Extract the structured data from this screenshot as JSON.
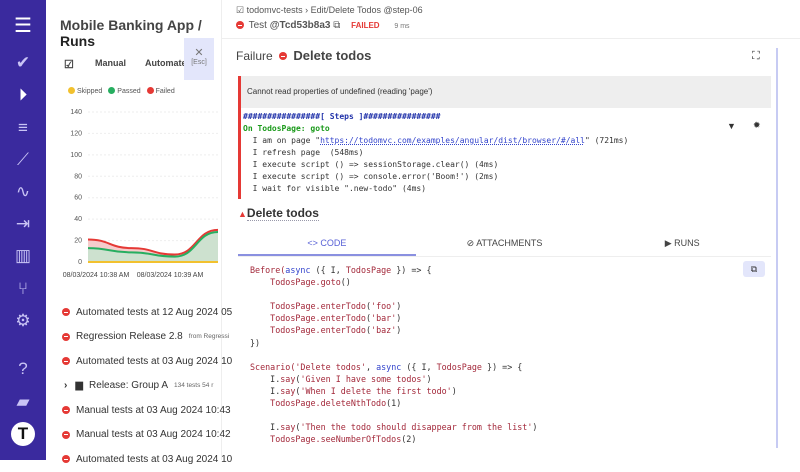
{
  "app": {
    "project": "Mobile Banking App",
    "section": "Runs"
  },
  "tabs": {
    "manual": "Manual",
    "automated": "Automated",
    "close_hint": "[Esc]"
  },
  "chart_data": {
    "type": "area",
    "legend": [
      "Skipped",
      "Passed",
      "Failed"
    ],
    "colors": {
      "Skipped": "#f2c12e",
      "Passed": "#27ae60",
      "Failed": "#e53935"
    },
    "ylim": [
      0,
      140
    ],
    "yticks": [
      0,
      20,
      40,
      60,
      80,
      100,
      120,
      140
    ],
    "xticks": [
      "08/03/2024 10:38 AM",
      "08/03/2024 10:39 AM"
    ],
    "x": [
      0,
      1,
      2,
      3
    ],
    "series": [
      {
        "name": "Skipped",
        "values": [
          0,
          0,
          0,
          0
        ]
      },
      {
        "name": "Passed",
        "values": [
          13,
          9,
          5,
          28
        ]
      },
      {
        "name": "Failed",
        "values": [
          21,
          13,
          7,
          30
        ]
      }
    ],
    "grid": true,
    "legend_position": "top-left"
  },
  "runs": [
    {
      "label": "Automated tests at 12 Aug 2024 05",
      "type": "failed"
    },
    {
      "label": "Regression Release 2.8",
      "extra": "from Regressi",
      "type": "failed"
    },
    {
      "label": "Automated tests at 03 Aug 2024 10",
      "type": "failed"
    },
    {
      "label": "Release: Group A",
      "extra": "134 tests  54 r",
      "type": "folder"
    },
    {
      "label": "Manual tests at 03 Aug 2024 10:43",
      "type": "failed"
    },
    {
      "label": "Manual tests at 03 Aug 2024 10:42",
      "type": "failed"
    },
    {
      "label": "Automated tests at 03 Aug 2024 10",
      "type": "failed"
    }
  ],
  "test": {
    "suite": "todomvc-tests",
    "path": "Edit/Delete Todos @step-06",
    "id_prefix": "Test",
    "id": "@Tcd53b8a3",
    "status": "FAILED",
    "duration": "9 ms"
  },
  "failure": {
    "label": "Failure",
    "title": "Delete todos",
    "message": "Cannot read properties of undefined (reading 'page')",
    "steps_header": "################[ Steps ]################",
    "step_group": "On TodosPage: goto",
    "steps": [
      [
        "  I am on page \"",
        "https://todomvc.com/examples/angular/dist/browser/#/all",
        "\" (721ms)"
      ],
      [
        "  I refresh page  (548ms)"
      ],
      [
        "  I execute script () => sessionStorage.clear() (4ms)"
      ],
      [
        "  I execute script () => console.error('Boom!') (2ms)"
      ],
      [
        "  I wait for visible \".new-todo\" (4ms)"
      ]
    ]
  },
  "detail": {
    "title": "Delete todos",
    "tabs": [
      "<> CODE",
      "ATTACHMENTS",
      "RUNS"
    ],
    "code": [
      [
        [
          "Before(",
          "r"
        ],
        [
          "async",
          "b"
        ],
        [
          " ({ I, ",
          "k"
        ],
        [
          "TodosPage",
          "r"
        ],
        [
          " }) => {",
          "k"
        ]
      ],
      [
        [
          "    TodosPage.goto",
          "r"
        ],
        [
          "()",
          "k"
        ]
      ],
      [],
      [
        [
          "    TodosPage.enterTodo",
          "r"
        ],
        [
          "(",
          "k"
        ],
        [
          "'foo'",
          "r"
        ],
        [
          ")",
          "k"
        ]
      ],
      [
        [
          "    TodosPage.enterTodo",
          "r"
        ],
        [
          "(",
          "k"
        ],
        [
          "'bar'",
          "r"
        ],
        [
          ")",
          "k"
        ]
      ],
      [
        [
          "    TodosPage.enterTodo",
          "r"
        ],
        [
          "(",
          "k"
        ],
        [
          "'baz'",
          "r"
        ],
        [
          ")",
          "k"
        ]
      ],
      [
        [
          "})",
          "k"
        ]
      ],
      [],
      [
        [
          "Scenario(",
          "r"
        ],
        [
          "'Delete todos'",
          "r"
        ],
        [
          ", ",
          "k"
        ],
        [
          "async",
          "b"
        ],
        [
          " ({ I, ",
          "k"
        ],
        [
          "TodosPage",
          "r"
        ],
        [
          " }) => {",
          "k"
        ]
      ],
      [
        [
          "    I.",
          "k"
        ],
        [
          "say",
          "r"
        ],
        [
          "(",
          "k"
        ],
        [
          "'Given I have some todos'",
          "r"
        ],
        [
          ")",
          "k"
        ]
      ],
      [
        [
          "    I.",
          "k"
        ],
        [
          "say",
          "r"
        ],
        [
          "(",
          "k"
        ],
        [
          "'When I delete the first todo'",
          "r"
        ],
        [
          ")",
          "k"
        ]
      ],
      [
        [
          "    TodosPage.deleteNthTodo",
          "r"
        ],
        [
          "(1)",
          "k"
        ]
      ],
      [],
      [
        [
          "    I.",
          "k"
        ],
        [
          "say",
          "r"
        ],
        [
          "(",
          "k"
        ],
        [
          "'Then the todo should disappear from the list'",
          "r"
        ],
        [
          ")",
          "k"
        ]
      ],
      [
        [
          "    TodosPage.seeNumberOfTodos",
          "r"
        ],
        [
          "(2)",
          "k"
        ]
      ]
    ]
  }
}
